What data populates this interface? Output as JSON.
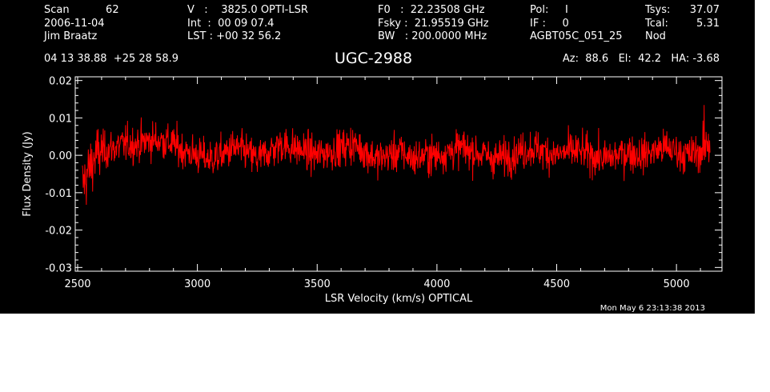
{
  "header": {
    "col1": [
      "Scan           62",
      "2006-11-04",
      "Jim Braatz"
    ],
    "col2": [
      "V   :    3825.0 OPTI-LSR",
      "Int  :  00 09 07.4",
      "LST : +00 32 56.2"
    ],
    "col3": [
      "F0   :  22.23508 GHz",
      "Fsky :  21.95519 GHz",
      "BW   : 200.0000 MHz"
    ],
    "col4": [
      "Pol:     I",
      "IF :     0",
      "AGBT05C_051_25"
    ],
    "col5_labels": [
      "Tsys:",
      "Tcal:",
      "Nod"
    ],
    "col5_values": [
      "37.07",
      "5.31",
      ""
    ],
    "coords": "04 13 38.88  +25 28 58.9",
    "source": "UGC-2988",
    "pointing": "Az:  88.6   El:  42.2   HA: -3.68",
    "timestamp": "Mon May  6 23:13:38 2013"
  },
  "colors": {
    "background": "#000000",
    "axes": "#ffffff",
    "trace": "#ff0000"
  },
  "chart_data": {
    "type": "line",
    "xlabel": "LSR Velocity (km/s) OPTICAL",
    "ylabel": "Flux Density (Jy)",
    "xlim": [
      2490,
      5190
    ],
    "ylim": [
      -0.031,
      0.021
    ],
    "xticks": [
      2500,
      3000,
      3500,
      4000,
      4500,
      5000
    ],
    "xtick_labels": [
      "2500",
      "3000",
      "3500",
      "4000",
      "4500",
      "5000"
    ],
    "yticks": [
      -0.03,
      -0.02,
      -0.01,
      0.0,
      0.01,
      0.02
    ],
    "ytick_labels": [
      "-0.03",
      "-0.02",
      "-0.01",
      "0.00",
      "0.01",
      "0.02"
    ],
    "series": [
      {
        "x": [
          2520,
          2540,
          2560,
          2580,
          2600,
          2650,
          2700,
          2750,
          2800,
          2850,
          2900,
          2950,
          3000,
          3050,
          3100,
          3150,
          3200,
          3250,
          3300,
          3350,
          3400,
          3450,
          3500,
          3550,
          3600,
          3650,
          3700,
          3750,
          3800,
          3850,
          3900,
          3950,
          4000,
          4050,
          4100,
          4150,
          4200,
          4250,
          4300,
          4350,
          4400,
          4450,
          4500,
          4550,
          4600,
          4650,
          4700,
          4750,
          4800,
          4850,
          4900,
          4950,
          5000,
          5050,
          5100,
          5140
        ],
        "y": [
          -0.008,
          -0.005,
          -0.002,
          0.0,
          0.001,
          0.002,
          0.003,
          0.003,
          0.004,
          0.004,
          0.003,
          0.001,
          0.0,
          -0.001,
          0.0,
          0.002,
          0.001,
          -0.001,
          0.001,
          0.003,
          0.002,
          0.001,
          0.0,
          0.001,
          0.002,
          0.003,
          0.001,
          -0.001,
          0.0,
          0.001,
          -0.001,
          0.0,
          0.0,
          0.001,
          0.002,
          0.001,
          0.0,
          -0.001,
          0.0,
          0.001,
          0.002,
          0.001,
          0.0,
          0.001,
          0.001,
          0.0,
          -0.001,
          0.0,
          0.001,
          0.0,
          0.001,
          0.002,
          0.001,
          0.0,
          0.001,
          0.004
        ],
        "noise_rms": 0.0045
      }
    ]
  }
}
